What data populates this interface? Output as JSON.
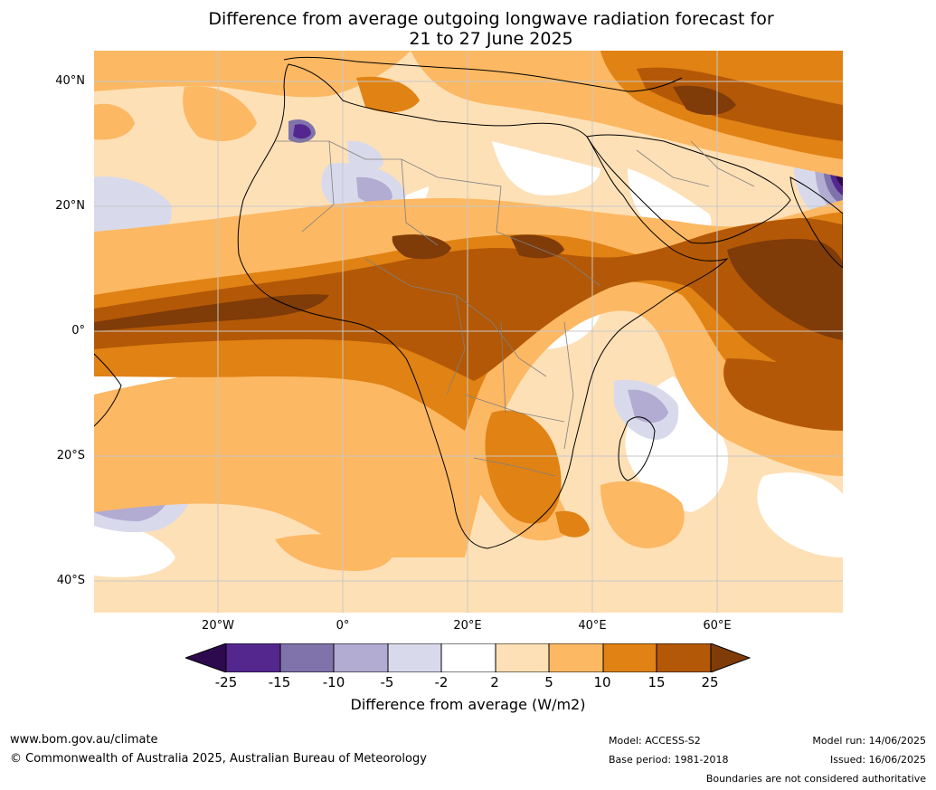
{
  "title": {
    "line1": "Difference from average outgoing longwave radiation forecast for",
    "line2": "21 to 27 June 2025"
  },
  "map": {
    "lat_labels": [
      "40°N",
      "20°N",
      "0°",
      "20°S",
      "40°S"
    ],
    "lon_labels": [
      "20°W",
      "0°",
      "20°E",
      "40°E",
      "60°E"
    ],
    "colors": {
      "n25": "#2d0a4e",
      "n15": "#54278f",
      "n10": "#8073ac",
      "n5": "#b2abd2",
      "n2": "#d8daeb",
      "zero": "#ffffff",
      "p2": "#fee0b6",
      "p5": "#fdb863",
      "p10": "#e08214",
      "p15": "#b35806",
      "p25": "#7f3b08",
      "land_line": "#000000",
      "border_line": "#808080",
      "grid": "#c8c8c8"
    }
  },
  "colorbar": {
    "ticks": [
      "-25",
      "-15",
      "-10",
      "-5",
      "-2",
      "2",
      "5",
      "10",
      "15",
      "25"
    ],
    "label": "Difference from average (W/m2)"
  },
  "footer": {
    "website": "www.bom.gov.au/climate",
    "copyright": "© Commonwealth of Australia 2025, Australian Bureau of Meteorology",
    "model": "Model: ACCESS-S2",
    "base_period": "Base period: 1981-2018",
    "model_run": "Model run: 14/06/2025",
    "issued": "Issued: 16/06/2025",
    "disclaimer": "Boundaries are not considered authoritative"
  }
}
